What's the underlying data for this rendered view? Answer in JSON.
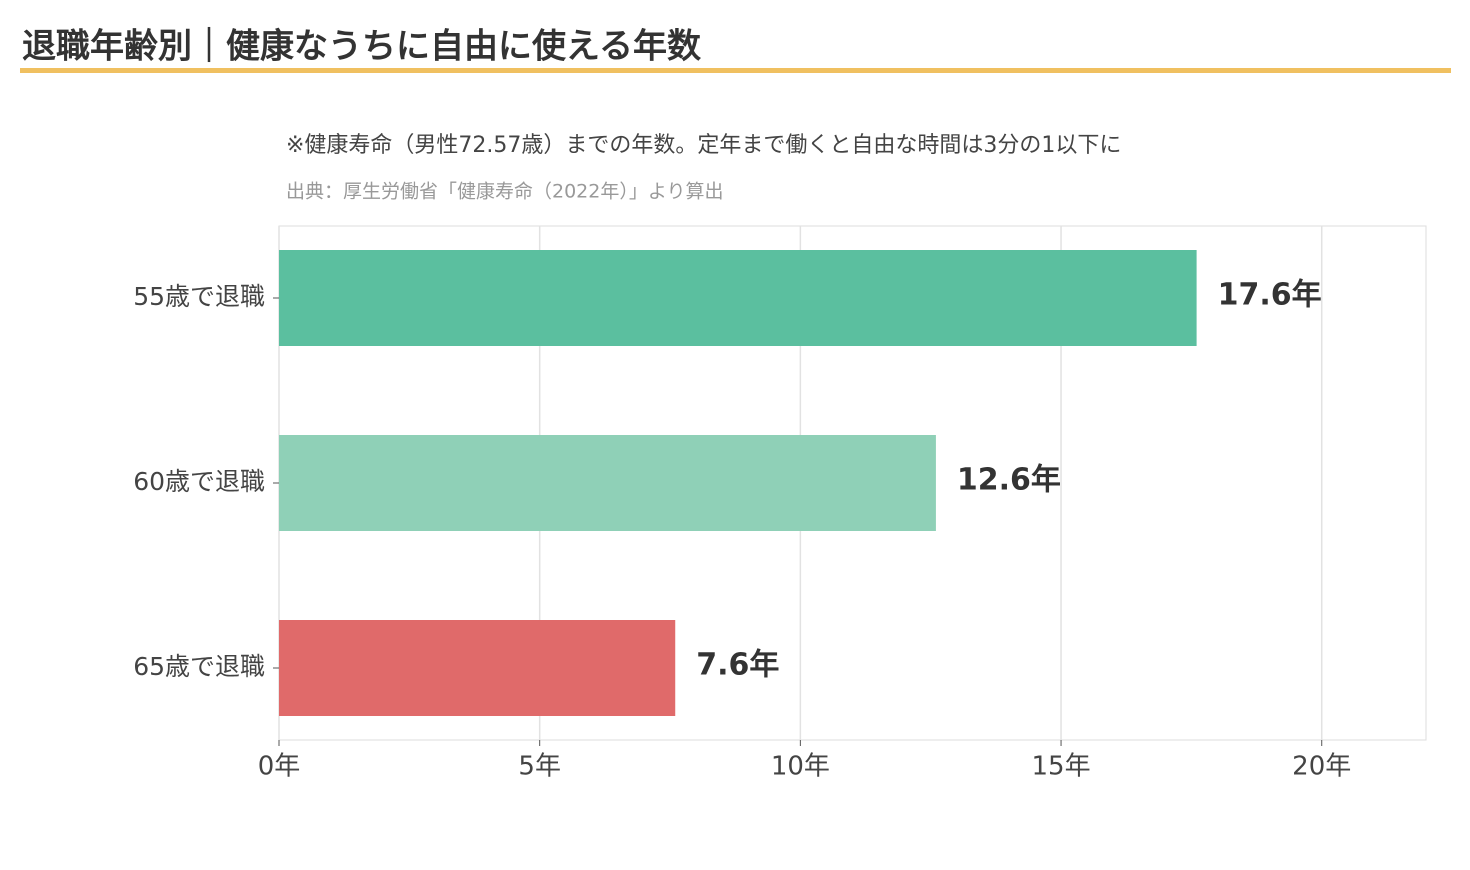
{
  "chart_data": {
    "type": "barh",
    "title": "退職年齢別｜健康なうちに自由に使える年数",
    "subtitle": "※健康寿命（男性72.57歳）までの年数。定年まで働くと自由な時間は3分の1以下に",
    "source": "出典：厚生労働省「健康寿命（2022年）」より算出",
    "categories": [
      "55歳で退職",
      "60歳で退職",
      "65歳で退職"
    ],
    "values": [
      17.6,
      12.6,
      7.6
    ],
    "value_labels": [
      "17.6年",
      "12.6年",
      "7.6年"
    ],
    "colors": [
      "#5bbf9f",
      "#8fd0b7",
      "#e06a6a"
    ],
    "xlim": [
      0,
      22
    ],
    "xticks": [
      {
        "value": 0,
        "label": "0年"
      },
      {
        "value": 5,
        "label": "5年"
      },
      {
        "value": 10,
        "label": "10年"
      },
      {
        "value": 15,
        "label": "15年"
      },
      {
        "value": 20,
        "label": "20年"
      }
    ],
    "grid": true
  }
}
